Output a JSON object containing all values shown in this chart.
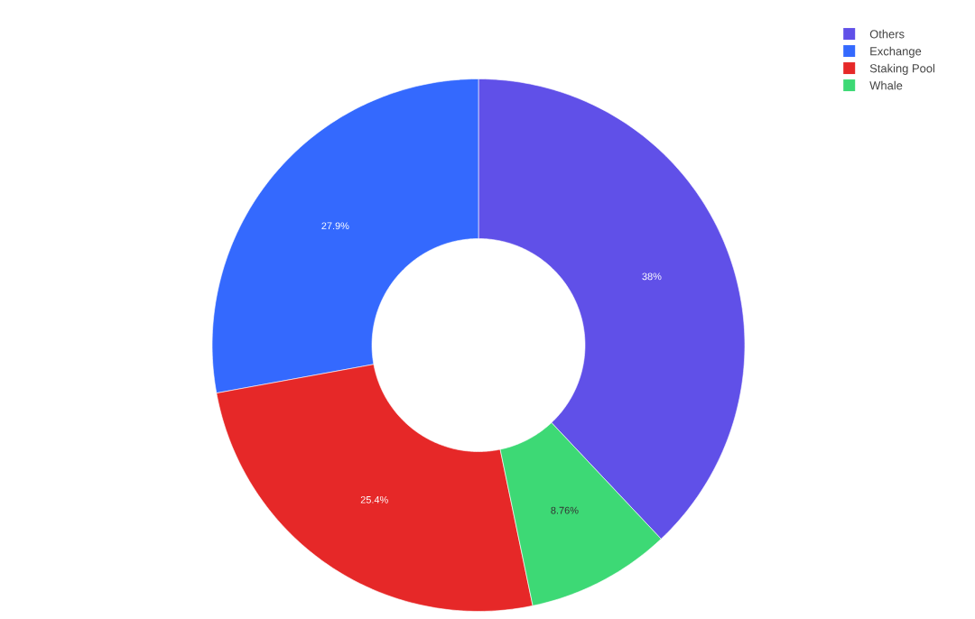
{
  "chart_data": {
    "type": "donut",
    "categories": [
      "Others",
      "Exchange",
      "Staking Pool",
      "Whale"
    ],
    "values": [
      38,
      27.9,
      25.4,
      8.76
    ],
    "colors": [
      "#6050e8",
      "#3469fe",
      "#e62828",
      "#3dd975"
    ],
    "value_labels": [
      "38%",
      "27.9%",
      "25.4%",
      "8.76%"
    ],
    "legend": "top right"
  }
}
